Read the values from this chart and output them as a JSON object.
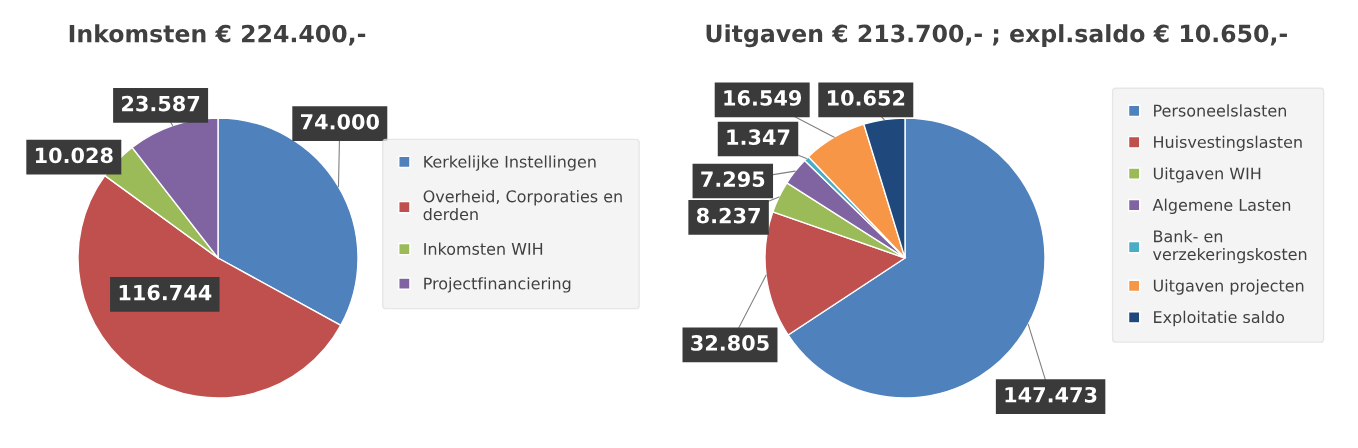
{
  "chart_data": [
    {
      "type": "pie",
      "title": "Inkomsten € 224.400,-",
      "legend": "right",
      "categories": [
        "Kerkelijke Instellingen",
        "Overheid, Corporaties en\nderden",
        "Inkomsten WIH",
        "Projectfinanciering"
      ],
      "values": [
        74000,
        116744,
        10028,
        23587
      ],
      "value_labels": [
        "74.000",
        "116.744",
        "10.028",
        "23.587"
      ],
      "colors": [
        "#4f81bd",
        "#c0504d",
        "#9bbb59",
        "#8064a2"
      ]
    },
    {
      "type": "pie",
      "title": "Uitgaven € 213.700,- ; expl.saldo € 10.650,-",
      "legend": "right",
      "categories": [
        "Personeelslasten",
        "Huisvestingslasten",
        "Uitgaven WIH",
        "Algemene Lasten",
        "Bank- en\nverzekeringskosten",
        "Uitgaven projecten",
        "Exploitatie saldo"
      ],
      "values": [
        147473,
        32805,
        8237,
        7295,
        1347,
        16549,
        10652
      ],
      "value_labels": [
        "147.473",
        "32.805",
        "8.237",
        "7.295",
        "1.347",
        "16.549",
        "10.652"
      ],
      "colors": [
        "#4f81bd",
        "#c0504d",
        "#9bbb59",
        "#8064a2",
        "#4bacc6",
        "#f79646",
        "#1f497d"
      ]
    }
  ]
}
